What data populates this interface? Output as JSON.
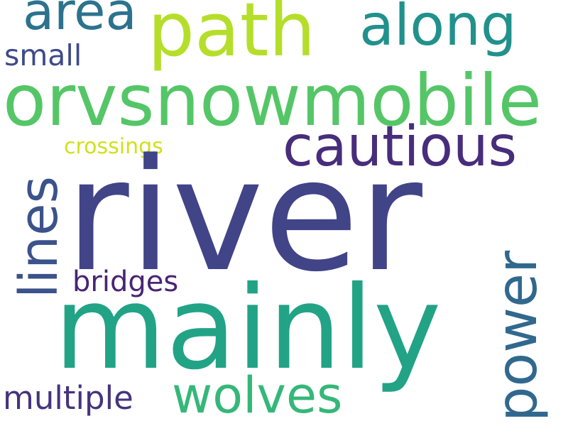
{
  "words": {
    "river": {
      "text": "river",
      "color": "#414487"
    },
    "mainly": {
      "text": "mainly",
      "color": "#22a386"
    },
    "orvsnowmobile": {
      "text": "orvsnowmobile",
      "color": "#55c667"
    },
    "path": {
      "text": "path",
      "color": "#b5de2b"
    },
    "along": {
      "text": "along",
      "color": "#21918c"
    },
    "area": {
      "text": "area",
      "color": "#2c728e"
    },
    "cautious": {
      "text": "cautious",
      "color": "#472d7b"
    },
    "lines": {
      "text": "lines",
      "color": "#3b528b"
    },
    "power": {
      "text": "power",
      "color": "#31688e"
    },
    "wolves": {
      "text": "wolves",
      "color": "#35b779"
    },
    "multiple": {
      "text": "multiple",
      "color": "#46337e"
    },
    "small": {
      "text": "small",
      "color": "#3e4a89"
    },
    "bridges": {
      "text": "bridges",
      "color": "#482475"
    },
    "crossings": {
      "text": "crossings",
      "color": "#d0e11c"
    }
  }
}
